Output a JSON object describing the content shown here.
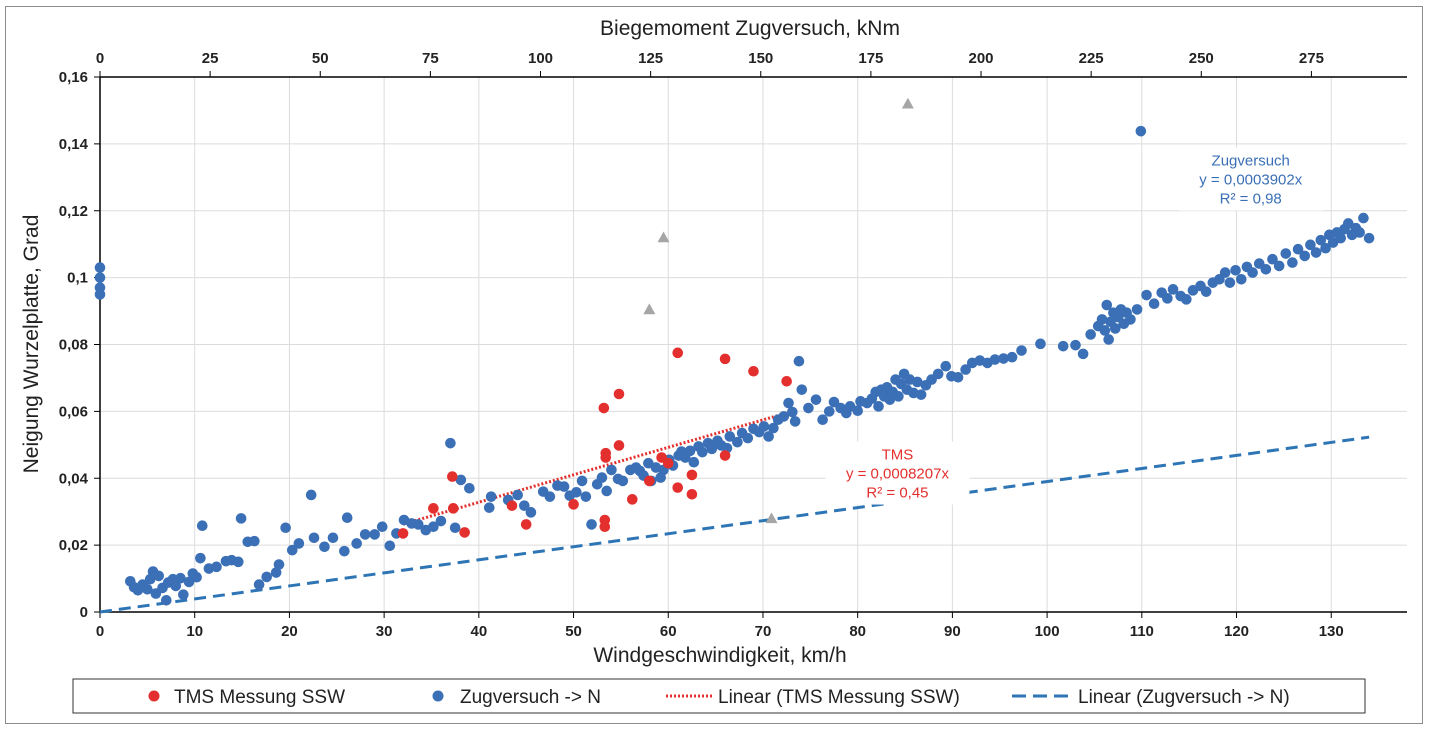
{
  "chart_data": {
    "type": "scatter",
    "x_axis": {
      "label": "Windgeschwindigkeit, km/h",
      "min": 0,
      "max": 138,
      "ticks": [
        "0",
        "10",
        "20",
        "30",
        "40",
        "50",
        "60",
        "70",
        "80",
        "90",
        "100",
        "110",
        "120",
        "130"
      ]
    },
    "x2_axis": {
      "label": "Biegemoment Zugversuch, kNm",
      "min": 0,
      "max": 296.7,
      "ticks": [
        "0",
        "25",
        "50",
        "75",
        "100",
        "125",
        "150",
        "175",
        "200",
        "225",
        "250",
        "275"
      ]
    },
    "y_axis": {
      "label": "Neigung Wurzelplatte, Grad",
      "min": 0,
      "max": 0.16,
      "ticks": [
        "0",
        "0,02",
        "0,04",
        "0,06",
        "0,08",
        "0,1",
        "0,12",
        "0,14",
        "0,16"
      ]
    },
    "grid": true,
    "legend_position": "bottom",
    "series": [
      {
        "name": "TMS Messung SSW",
        "color": "#e3302f",
        "points": [
          [
            32,
            0.0235
          ],
          [
            35.2,
            0.031
          ],
          [
            37.2,
            0.0405
          ],
          [
            37.3,
            0.031
          ],
          [
            38.5,
            0.0238
          ],
          [
            43.5,
            0.0318
          ],
          [
            45,
            0.0262
          ],
          [
            50,
            0.0322
          ],
          [
            53.2,
            0.061
          ],
          [
            53.3,
            0.0275
          ],
          [
            53.3,
            0.0255
          ],
          [
            53.4,
            0.0462
          ],
          [
            53.4,
            0.0475
          ],
          [
            54.8,
            0.0652
          ],
          [
            54.8,
            0.0498
          ],
          [
            56.2,
            0.0337
          ],
          [
            58,
            0.0392
          ],
          [
            59.3,
            0.0462
          ],
          [
            60,
            0.0445
          ],
          [
            61,
            0.0775
          ],
          [
            61,
            0.0372
          ],
          [
            62.5,
            0.041
          ],
          [
            62.5,
            0.0352
          ],
          [
            66,
            0.0757
          ],
          [
            66,
            0.0468
          ],
          [
            69,
            0.072
          ],
          [
            72.5,
            0.069
          ]
        ]
      },
      {
        "name": "Zugversuch  -> N",
        "color": "#3b6fb6",
        "points": [
          [
            0,
            0.103
          ],
          [
            0,
            0.1
          ],
          [
            0,
            0.097
          ],
          [
            0,
            0.095
          ],
          [
            3.2,
            0.0092
          ],
          [
            3.6,
            0.0074
          ],
          [
            4,
            0.0065
          ],
          [
            4.5,
            0.0082
          ],
          [
            5,
            0.0068
          ],
          [
            5.3,
            0.0098
          ],
          [
            5.6,
            0.0121
          ],
          [
            5.9,
            0.0055
          ],
          [
            6.2,
            0.0108
          ],
          [
            6.6,
            0.0072
          ],
          [
            7,
            0.0035
          ],
          [
            7.2,
            0.0088
          ],
          [
            7.7,
            0.0098
          ],
          [
            8,
            0.0078
          ],
          [
            8.5,
            0.0101
          ],
          [
            8.8,
            0.0052
          ],
          [
            9.4,
            0.009
          ],
          [
            9.8,
            0.0115
          ],
          [
            10.2,
            0.0104
          ],
          [
            10.6,
            0.0161
          ],
          [
            10.8,
            0.0258
          ],
          [
            11.5,
            0.013
          ],
          [
            12.3,
            0.0135
          ],
          [
            13.3,
            0.0152
          ],
          [
            13.9,
            0.0155
          ],
          [
            14.6,
            0.015
          ],
          [
            14.9,
            0.028
          ],
          [
            15.6,
            0.021
          ],
          [
            16.3,
            0.0212
          ],
          [
            16.8,
            0.0082
          ],
          [
            17.6,
            0.0105
          ],
          [
            18.6,
            0.0118
          ],
          [
            18.9,
            0.0142
          ],
          [
            19.6,
            0.0252
          ],
          [
            20.3,
            0.0185
          ],
          [
            21,
            0.0205
          ],
          [
            22.3,
            0.035
          ],
          [
            22.6,
            0.0222
          ],
          [
            23.7,
            0.0195
          ],
          [
            24.6,
            0.0222
          ],
          [
            25.8,
            0.0182
          ],
          [
            26.1,
            0.0282
          ],
          [
            27.1,
            0.0205
          ],
          [
            28,
            0.0232
          ],
          [
            29,
            0.0232
          ],
          [
            29.8,
            0.0255
          ],
          [
            30.6,
            0.0198
          ],
          [
            31.3,
            0.0235
          ],
          [
            32.1,
            0.0275
          ],
          [
            32.9,
            0.0265
          ],
          [
            33.6,
            0.0262
          ],
          [
            34.4,
            0.0245
          ],
          [
            35.2,
            0.0255
          ],
          [
            36,
            0.0272
          ],
          [
            37,
            0.0505
          ],
          [
            37.5,
            0.0252
          ],
          [
            38.1,
            0.0395
          ],
          [
            39,
            0.037
          ],
          [
            41.1,
            0.0312
          ],
          [
            41.3,
            0.0345
          ],
          [
            43.1,
            0.0335
          ],
          [
            44.1,
            0.035
          ],
          [
            44.8,
            0.0318
          ],
          [
            45.5,
            0.0298
          ],
          [
            46.8,
            0.036
          ],
          [
            47.5,
            0.0345
          ],
          [
            48.3,
            0.0378
          ],
          [
            49,
            0.0375
          ],
          [
            49.6,
            0.0348
          ],
          [
            50.3,
            0.0358
          ],
          [
            50.9,
            0.0392
          ],
          [
            51.3,
            0.0345
          ],
          [
            51.9,
            0.0262
          ],
          [
            52.5,
            0.0382
          ],
          [
            53,
            0.0402
          ],
          [
            53.5,
            0.0362
          ],
          [
            54,
            0.0425
          ],
          [
            54.7,
            0.0398
          ],
          [
            55.2,
            0.0392
          ],
          [
            56,
            0.0425
          ],
          [
            56.6,
            0.0432
          ],
          [
            57,
            0.0422
          ],
          [
            57.4,
            0.0408
          ],
          [
            57.9,
            0.0445
          ],
          [
            58.2,
            0.0392
          ],
          [
            58.7,
            0.0432
          ],
          [
            59.2,
            0.0402
          ],
          [
            59.5,
            0.0425
          ],
          [
            60.1,
            0.0455
          ],
          [
            60.5,
            0.0438
          ],
          [
            61.1,
            0.0468
          ],
          [
            61.4,
            0.048
          ],
          [
            61.8,
            0.0462
          ],
          [
            62.3,
            0.0482
          ],
          [
            62.7,
            0.0448
          ],
          [
            63.2,
            0.0495
          ],
          [
            63.6,
            0.0478
          ],
          [
            64.2,
            0.0505
          ],
          [
            64.6,
            0.0488
          ],
          [
            65.2,
            0.0512
          ],
          [
            65.6,
            0.0498
          ],
          [
            66.2,
            0.049
          ],
          [
            66.5,
            0.0525
          ],
          [
            67.3,
            0.0508
          ],
          [
            67.8,
            0.0535
          ],
          [
            68.4,
            0.052
          ],
          [
            69,
            0.0548
          ],
          [
            69.6,
            0.0538
          ],
          [
            70.1,
            0.0555
          ],
          [
            70.6,
            0.0525
          ],
          [
            71.1,
            0.055
          ],
          [
            71.6,
            0.0575
          ],
          [
            72.2,
            0.0585
          ],
          [
            72.7,
            0.0625
          ],
          [
            73.1,
            0.0598
          ],
          [
            73.4,
            0.057
          ],
          [
            73.8,
            0.075
          ],
          [
            74.1,
            0.0665
          ],
          [
            74.8,
            0.061
          ],
          [
            75.6,
            0.0635
          ],
          [
            76.3,
            0.0575
          ],
          [
            77,
            0.06
          ],
          [
            77.5,
            0.0628
          ],
          [
            78.2,
            0.061
          ],
          [
            78.8,
            0.0595
          ],
          [
            79.2,
            0.0615
          ],
          [
            80,
            0.0602
          ],
          [
            80.3,
            0.063
          ],
          [
            81,
            0.0625
          ],
          [
            81.5,
            0.0638
          ],
          [
            81.9,
            0.0658
          ],
          [
            82.2,
            0.0615
          ],
          [
            82.5,
            0.0665
          ],
          [
            82.8,
            0.0645
          ],
          [
            83.1,
            0.0672
          ],
          [
            83.4,
            0.0635
          ],
          [
            83.7,
            0.0658
          ],
          [
            84,
            0.0695
          ],
          [
            84.3,
            0.0645
          ],
          [
            84.6,
            0.0682
          ],
          [
            84.9,
            0.0712
          ],
          [
            85.2,
            0.0665
          ],
          [
            85.5,
            0.0695
          ],
          [
            85.9,
            0.0655
          ],
          [
            86.3,
            0.0688
          ],
          [
            86.7,
            0.065
          ],
          [
            87.2,
            0.0678
          ],
          [
            87.8,
            0.0695
          ],
          [
            88.5,
            0.0712
          ],
          [
            89.3,
            0.0735
          ],
          [
            89.9,
            0.0705
          ],
          [
            90.6,
            0.0702
          ],
          [
            91.4,
            0.0725
          ],
          [
            92.1,
            0.0745
          ],
          [
            92.9,
            0.0752
          ],
          [
            93.7,
            0.0745
          ],
          [
            94.5,
            0.0755
          ],
          [
            95.4,
            0.0758
          ],
          [
            96.3,
            0.0762
          ],
          [
            97.3,
            0.0782
          ],
          [
            99.3,
            0.0802
          ],
          [
            101.7,
            0.0795
          ],
          [
            103,
            0.0798
          ],
          [
            103.8,
            0.0772
          ],
          [
            104.6,
            0.083
          ],
          [
            105.4,
            0.0855
          ],
          [
            105.8,
            0.0875
          ],
          [
            106.1,
            0.0842
          ],
          [
            106.3,
            0.0918
          ],
          [
            106.5,
            0.0815
          ],
          [
            106.7,
            0.0868
          ],
          [
            107,
            0.0895
          ],
          [
            107.2,
            0.0848
          ],
          [
            107.5,
            0.0882
          ],
          [
            107.8,
            0.0905
          ],
          [
            108.1,
            0.0862
          ],
          [
            108.4,
            0.0895
          ],
          [
            108.8,
            0.0875
          ],
          [
            109.5,
            0.0905
          ],
          [
            109.9,
            0.1438
          ],
          [
            110.5,
            0.0948
          ],
          [
            111.3,
            0.0922
          ],
          [
            112.1,
            0.0955
          ],
          [
            112.7,
            0.0938
          ],
          [
            113.3,
            0.0965
          ],
          [
            114.1,
            0.0945
          ],
          [
            114.7,
            0.0935
          ],
          [
            115.4,
            0.0962
          ],
          [
            116.2,
            0.0975
          ],
          [
            116.8,
            0.0958
          ],
          [
            117.5,
            0.0985
          ],
          [
            118.2,
            0.0995
          ],
          [
            118.8,
            0.1015
          ],
          [
            119.3,
            0.0985
          ],
          [
            119.9,
            0.1022
          ],
          [
            120.5,
            0.0995
          ],
          [
            121.1,
            0.1032
          ],
          [
            121.7,
            0.1015
          ],
          [
            122.4,
            0.1042
          ],
          [
            123.1,
            0.1025
          ],
          [
            123.8,
            0.1055
          ],
          [
            124.5,
            0.1035
          ],
          [
            125.2,
            0.1072
          ],
          [
            125.9,
            0.1045
          ],
          [
            126.5,
            0.1085
          ],
          [
            127.2,
            0.1065
          ],
          [
            127.8,
            0.1098
          ],
          [
            128.4,
            0.1075
          ],
          [
            128.9,
            0.1112
          ],
          [
            129.4,
            0.1088
          ],
          [
            129.8,
            0.1128
          ],
          [
            130.2,
            0.1105
          ],
          [
            130.6,
            0.1135
          ],
          [
            131,
            0.1118
          ],
          [
            131.4,
            0.1145
          ],
          [
            131.8,
            0.1162
          ],
          [
            132.2,
            0.1128
          ],
          [
            132.6,
            0.1148
          ],
          [
            133,
            0.1135
          ],
          [
            133.4,
            0.1178
          ],
          [
            134,
            0.1118
          ]
        ]
      },
      {
        "name": "",
        "color": "#a6a6a6",
        "marker": "triangle",
        "points": [
          [
            85.3,
            0.152
          ],
          [
            59.5,
            0.112
          ],
          [
            58,
            0.0905
          ],
          [
            70.9,
            0.028
          ]
        ]
      }
    ],
    "trendlines": [
      {
        "name": "Linear (TMS Messung SSW)",
        "color": "#e3302f",
        "style": "dotted",
        "slope": 0.0008207,
        "x_range": [
          32,
          72.5
        ]
      },
      {
        "name": "Linear (Zugversuch  -> N)",
        "color": "#2e75b6",
        "style": "dashed",
        "slope": 0.0003902,
        "x_range": [
          0,
          134
        ]
      }
    ],
    "annotations": [
      {
        "series": "Zugversuch",
        "lines": [
          "Zugversuch",
          "y = 0,0003902x",
          "R² = 0,98"
        ],
        "color": "#3b6fb6",
        "x": 121.5,
        "y": 0.1335
      },
      {
        "series": "TMS",
        "lines": [
          "TMS",
          "y = 0,0008207x",
          "R² = 0,45"
        ],
        "color": "#e3302f",
        "x": 84.2,
        "y": 0.0456
      }
    ]
  },
  "legend": [
    {
      "label": "TMS Messung SSW",
      "kind": "dot",
      "color": "#e3302f"
    },
    {
      "label": "Zugversuch  -> N",
      "kind": "dot",
      "color": "#3b6fb6"
    },
    {
      "label": "Linear (TMS Messung SSW)",
      "kind": "dotted-line",
      "color": "#e3302f"
    },
    {
      "label": "Linear (Zugversuch  -> N)",
      "kind": "dashed-line",
      "color": "#2e75b6"
    }
  ]
}
